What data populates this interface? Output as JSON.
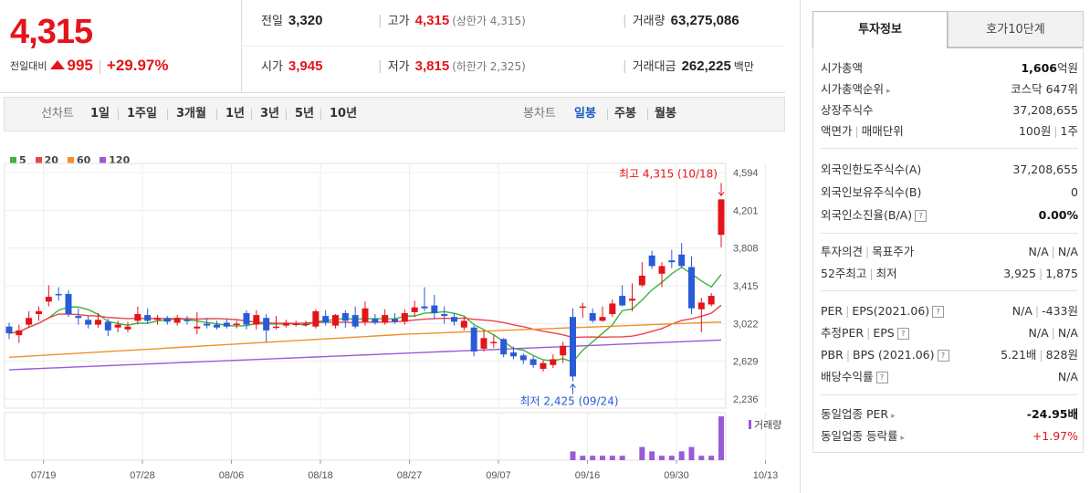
{
  "price": {
    "current": "4,315",
    "change_label": "전일대비",
    "change_value": "995",
    "change_pct": "+29.97%"
  },
  "stats": {
    "prev_close_label": "전일",
    "prev_close": "3,320",
    "high_label": "고가",
    "high": "4,315",
    "upper_limit": "(상한가 4,315)",
    "volume_label": "거래량",
    "volume": "63,275,086",
    "open_label": "시가",
    "open": "3,945",
    "low_label": "저가",
    "low": "3,815",
    "lower_limit": "(하한가 2,325)",
    "amount_label": "거래대금",
    "amount": "262,225",
    "amount_unit": "백만"
  },
  "period_bar": {
    "line_label": "선차트",
    "periods": [
      "1일",
      "1주일",
      "3개월",
      "1년",
      "3년",
      "5년",
      "10년"
    ],
    "candle_label": "봉차트",
    "candle_periods": [
      "일봉",
      "주봉",
      "월봉"
    ],
    "candle_selected": "일봉"
  },
  "legend": [
    {
      "label": "5",
      "color": "#3cb33c"
    },
    {
      "label": "20",
      "color": "#e8454b"
    },
    {
      "label": "60",
      "color": "#f0902c"
    },
    {
      "label": "120",
      "color": "#9a5bd6"
    }
  ],
  "chart_data": {
    "type": "candlestick",
    "y_ticks": [
      "4,594",
      "4,201",
      "3,808",
      "3,415",
      "3,022",
      "2,629",
      "2,236"
    ],
    "ylim": [
      2236,
      4594
    ],
    "x_ticks": [
      "07/19",
      "07/28",
      "08/06",
      "08/18",
      "08/27",
      "09/07",
      "09/16",
      "09/30",
      "10/13"
    ],
    "max_annotation": "최고 4,315 (10/18)",
    "min_annotation": "최저 2,425 (09/24)",
    "volume_label": "거래량",
    "candles": [
      [
        2990,
        2920,
        3030,
        2860
      ],
      [
        2900,
        2950,
        3010,
        2820
      ],
      [
        3010,
        3080,
        3150,
        2980
      ],
      [
        3120,
        3150,
        3200,
        3050
      ],
      [
        3250,
        3300,
        3420,
        3200
      ],
      [
        3330,
        3320,
        3400,
        3260
      ],
      [
        3330,
        3120,
        3370,
        3090
      ],
      [
        3100,
        3080,
        3180,
        3010
      ],
      [
        3060,
        3010,
        3100,
        2970
      ],
      [
        3010,
        3060,
        3130,
        2980
      ],
      [
        3040,
        2950,
        3070,
        2890
      ],
      [
        2980,
        3010,
        3050,
        2930
      ],
      [
        2960,
        2990,
        3040,
        2930
      ],
      [
        3050,
        3120,
        3200,
        3010
      ],
      [
        3110,
        3050,
        3180,
        3020
      ],
      [
        3060,
        3080,
        3110,
        3010
      ],
      [
        3080,
        3040,
        3100,
        3010
      ],
      [
        3030,
        3080,
        3110,
        3000
      ],
      [
        3060,
        3050,
        3100,
        3010
      ],
      [
        2970,
        2990,
        3140,
        2910
      ],
      [
        3020,
        3000,
        3080,
        2970
      ],
      [
        3010,
        2980,
        3050,
        2960
      ],
      [
        3030,
        2990,
        3070,
        2970
      ],
      [
        3010,
        3020,
        3050,
        2970
      ],
      [
        3130,
        3010,
        3160,
        2960
      ],
      [
        3010,
        3110,
        3160,
        2960
      ],
      [
        3080,
        2950,
        3120,
        2830
      ],
      [
        2990,
        2990,
        3100,
        2960
      ],
      [
        3000,
        3030,
        3060,
        2980
      ],
      [
        3010,
        3020,
        3050,
        2990
      ],
      [
        3010,
        3020,
        3050,
        2990
      ],
      [
        2990,
        3150,
        3170,
        2970
      ],
      [
        3100,
        3030,
        3160,
        3000
      ],
      [
        3000,
        3110,
        3120,
        2970
      ],
      [
        3130,
        3050,
        3160,
        2980
      ],
      [
        3110,
        2990,
        3200,
        2970
      ],
      [
        3040,
        3180,
        3250,
        3000
      ],
      [
        3070,
        3030,
        3120,
        3010
      ],
      [
        3030,
        3110,
        3170,
        3010
      ],
      [
        3070,
        3040,
        3130,
        3020
      ],
      [
        3040,
        3130,
        3170,
        3010
      ],
      [
        3140,
        3190,
        3260,
        3090
      ],
      [
        3200,
        3180,
        3400,
        3150
      ],
      [
        3210,
        3130,
        3320,
        3070
      ],
      [
        3120,
        3100,
        3200,
        3020
      ],
      [
        3090,
        3040,
        3130,
        3000
      ],
      [
        2980,
        3050,
        3090,
        2950
      ],
      [
        2980,
        2730,
        3000,
        2680
      ],
      [
        2760,
        2870,
        2950,
        2730
      ],
      [
        2820,
        2830,
        2900,
        2770
      ],
      [
        2860,
        2700,
        2870,
        2670
      ],
      [
        2720,
        2680,
        2780,
        2650
      ],
      [
        2690,
        2640,
        2710,
        2600
      ],
      [
        2650,
        2590,
        2680,
        2560
      ],
      [
        2550,
        2610,
        2640,
        2520
      ],
      [
        2590,
        2650,
        2700,
        2560
      ],
      [
        2690,
        2790,
        2830,
        2610
      ],
      [
        3090,
        2470,
        3180,
        2420
      ],
      [
        3190,
        3200,
        3240,
        3080
      ],
      [
        3130,
        3050,
        3180,
        3030
      ],
      [
        3050,
        3090,
        3200,
        3040
      ],
      [
        3120,
        3230,
        3270,
        3090
      ],
      [
        3310,
        3210,
        3420,
        3200
      ],
      [
        3260,
        3280,
        3440,
        3150
      ],
      [
        3420,
        3520,
        3660,
        3400
      ],
      [
        3730,
        3620,
        3780,
        3590
      ],
      [
        3540,
        3620,
        3660,
        3400
      ],
      [
        3680,
        3660,
        3790,
        3600
      ],
      [
        3740,
        3620,
        3860,
        3600
      ],
      [
        3610,
        3180,
        3720,
        3120
      ],
      [
        3170,
        3240,
        3290,
        2930
      ],
      [
        3220,
        3310,
        3340,
        3200
      ],
      [
        3945,
        4315,
        4315,
        3815
      ]
    ],
    "volume": [
      0,
      0,
      0,
      0,
      0,
      0,
      0,
      0,
      0,
      0,
      0,
      0,
      0,
      0,
      0,
      0,
      0,
      0,
      0,
      0,
      0,
      0,
      0,
      0,
      0,
      0,
      0,
      0,
      0,
      0,
      0,
      0,
      0,
      0,
      0,
      0,
      0,
      0,
      0,
      0,
      0,
      0,
      0,
      0,
      0,
      0,
      0,
      0,
      0,
      0,
      0,
      0,
      0,
      0,
      0,
      0,
      0,
      2,
      1,
      1,
      1,
      1,
      1,
      0,
      3,
      2,
      1,
      1,
      2,
      3,
      1,
      1,
      10
    ],
    "volume_max": 63275086
  },
  "info_tabs": {
    "active": "투자정보",
    "inactive": "호가10단계"
  },
  "info": {
    "market_cap_label": "시가총액",
    "market_cap": "1,606",
    "market_cap_unit": "억원",
    "cap_rank_label": "시가총액순위",
    "cap_rank": "코스닥 647위",
    "shares_label": "상장주식수",
    "shares": "37,208,655",
    "par_label": "액면가",
    "unit_label": "매매단위",
    "par": "100원",
    "unit": "1주",
    "foreign_limit_label": "외국인한도주식수(A)",
    "foreign_limit": "37,208,655",
    "foreign_hold_label": "외국인보유주식수(B)",
    "foreign_hold": "0",
    "foreign_ratio_label": "외국인소진율(B/A)",
    "foreign_ratio": "0.00%",
    "opinion_label": "투자의견",
    "target_label": "목표주가",
    "opinion": "N/A",
    "target": "N/A",
    "w52_high_label": "52주최고",
    "w52_low_label": "최저",
    "w52_high": "3,925",
    "w52_low": "1,875",
    "per_label": "PER",
    "eps_label": "EPS(2021.06)",
    "per": "N/A",
    "eps": "-433원",
    "est_per_label": "추정PER",
    "est_eps_label": "EPS",
    "est_per": "N/A",
    "est_eps": "N/A",
    "pbr_label": "PBR",
    "bps_label": "BPS (2021.06)",
    "pbr": "5.21배",
    "bps": "828원",
    "div_label": "배당수익률",
    "div": "N/A",
    "ind_per_label": "동일업종 PER",
    "ind_per": "-24.95배",
    "ind_chg_label": "동일업종 등락률",
    "ind_chg": "+1.97%"
  }
}
